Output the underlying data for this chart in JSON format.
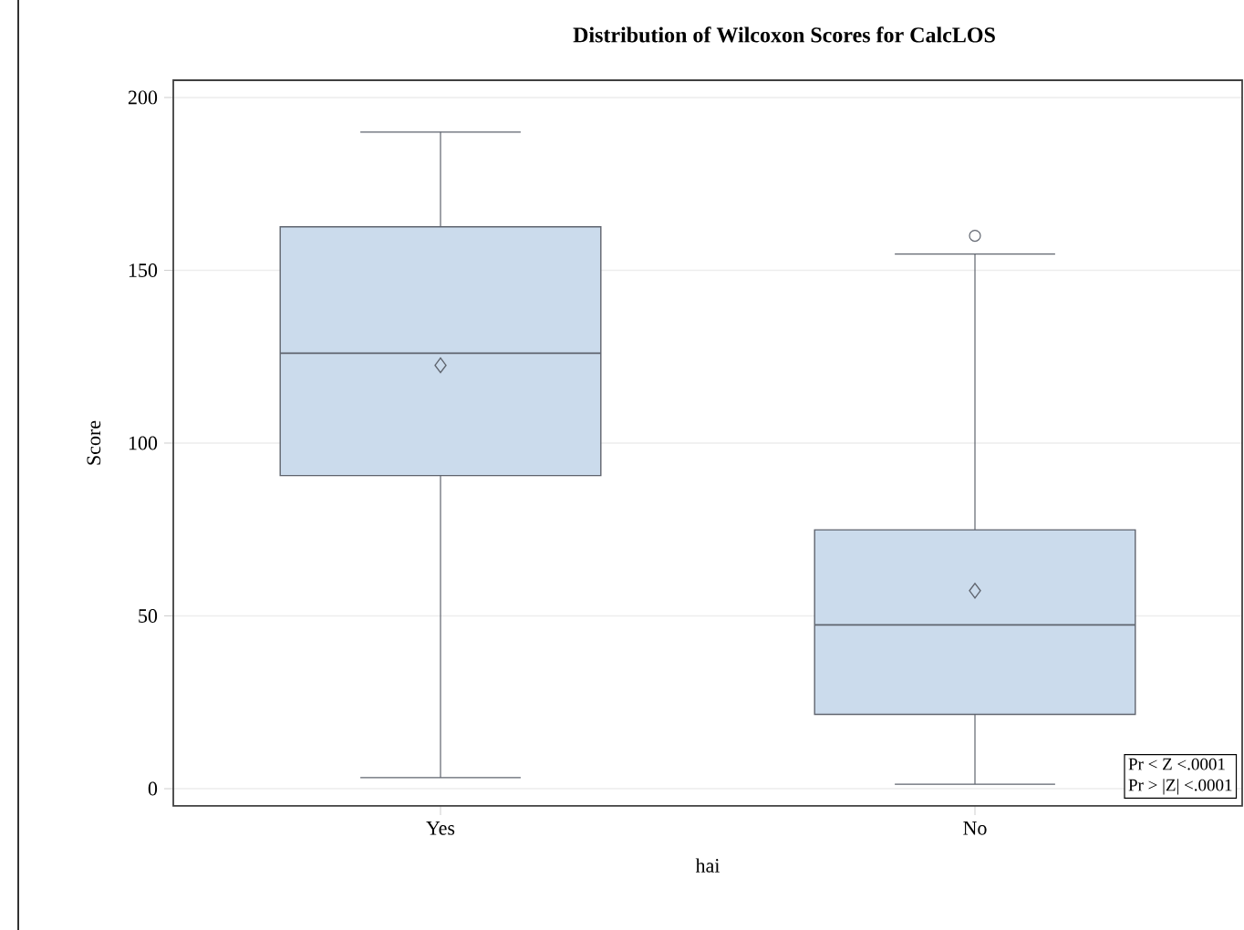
{
  "chart_data": {
    "type": "box",
    "title": "Distribution of Wilcoxon Scores for CalcLOS",
    "xlabel": "hai",
    "ylabel": "Score",
    "categories": [
      "Yes",
      "No"
    ],
    "boxes": [
      {
        "low": 3.2,
        "q1": 90.6,
        "median": 126,
        "q3": 162.6,
        "high": 190,
        "mean": 122.5
      },
      {
        "low": 1.3,
        "q1": 21.5,
        "median": 47.4,
        "q3": 74.9,
        "high": 154.7,
        "mean": 57.3,
        "outliers": [
          160
        ]
      }
    ],
    "color": "#cbdbec",
    "ylim": [
      -5,
      205
    ],
    "yticks": [
      0,
      50,
      100,
      150,
      200
    ],
    "grid": "y",
    "annotations": [
      "Pr < Z   <.0001",
      "Pr > |Z|   <.0001"
    ]
  }
}
